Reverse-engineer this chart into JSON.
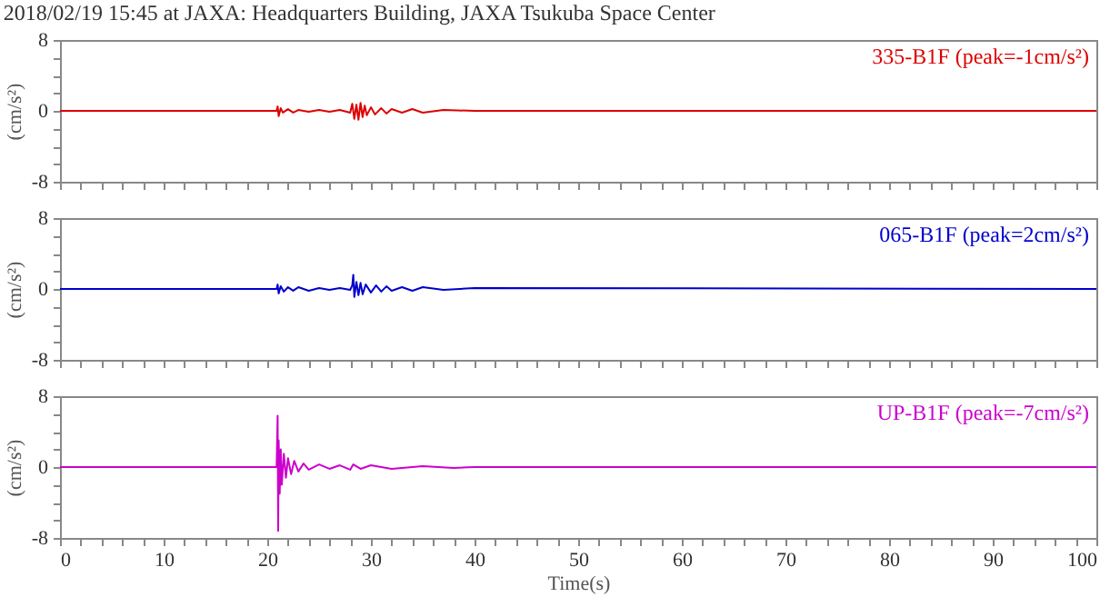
{
  "chart_data": [
    {
      "type": "line",
      "title": "2018/02/19 15:45 at JAXA: Headquarters Building, JAXA Tsukuba Space Center",
      "ylabel": "(cm/s²)",
      "annotations": [
        "335-B1F (peak=-1cm/s²)"
      ],
      "tick_labels": "y",
      "grid": false,
      "xlim": [
        0,
        100
      ],
      "ylim": [
        -8,
        8
      ],
      "xticks": [
        0,
        {
          "value": 2,
          "label": null
        },
        {
          "value": 4,
          "label": null
        },
        {
          "value": 6,
          "label": null
        },
        {
          "value": 8,
          "label": null
        },
        10,
        {
          "value": 12,
          "label": null
        },
        {
          "value": 14,
          "label": null
        },
        {
          "value": 16,
          "label": null
        },
        {
          "value": 18,
          "label": null
        },
        20,
        {
          "value": 22,
          "label": null
        },
        {
          "value": 24,
          "label": null
        },
        {
          "value": 26,
          "label": null
        },
        {
          "value": 28,
          "label": null
        },
        30,
        {
          "value": 32,
          "label": null
        },
        {
          "value": 34,
          "label": null
        },
        {
          "value": 36,
          "label": null
        },
        {
          "value": 38,
          "label": null
        },
        40,
        {
          "value": 42,
          "label": null
        },
        {
          "value": 44,
          "label": null
        },
        {
          "value": 46,
          "label": null
        },
        {
          "value": 48,
          "label": null
        },
        50,
        {
          "value": 52,
          "label": null
        },
        {
          "value": 54,
          "label": null
        },
        {
          "value": 56,
          "label": null
        },
        {
          "value": 58,
          "label": null
        },
        60,
        {
          "value": 62,
          "label": null
        },
        {
          "value": 64,
          "label": null
        },
        {
          "value": 66,
          "label": null
        },
        {
          "value": 68,
          "label": null
        },
        70,
        {
          "value": 72,
          "label": null
        },
        {
          "value": 74,
          "label": null
        },
        {
          "value": 76,
          "label": null
        },
        {
          "value": 78,
          "label": null
        },
        80,
        {
          "value": 82,
          "label": null
        },
        {
          "value": 84,
          "label": null
        },
        {
          "value": 86,
          "label": null
        },
        {
          "value": 88,
          "label": null
        },
        90,
        {
          "value": 92,
          "label": null
        },
        {
          "value": 94,
          "label": null
        },
        {
          "value": 96,
          "label": null
        },
        {
          "value": 98,
          "label": null
        },
        100
      ],
      "yticks": [
        -8,
        {
          "value": -6,
          "label": null
        },
        {
          "value": -4,
          "label": null
        },
        {
          "value": -2,
          "label": null
        },
        0,
        {
          "value": 2,
          "label": null
        },
        {
          "value": 4,
          "label": null
        },
        {
          "value": 6,
          "label": null
        },
        8
      ],
      "series": [
        {
          "color": "#dd0000",
          "x": [
            0,
            20.9,
            21,
            21.1,
            21.3,
            21.5,
            22,
            22.5,
            23,
            24,
            25,
            26,
            27,
            28,
            28.2,
            28.4,
            28.6,
            28.8,
            29,
            29.2,
            29.4,
            29.6,
            30,
            30.4,
            31,
            31.5,
            32,
            33,
            34,
            35,
            37,
            40,
            100
          ],
          "values": [
            0,
            0,
            0.5,
            -0.6,
            0.3,
            -0.2,
            0.2,
            -0.2,
            0.1,
            -0.1,
            0.1,
            -0.1,
            0.1,
            -0.2,
            0.8,
            -0.9,
            0.7,
            -1.0,
            0.9,
            -0.7,
            0.6,
            -0.5,
            0.4,
            -0.4,
            0.3,
            -0.3,
            0.2,
            -0.2,
            0.2,
            -0.2,
            0.1,
            0,
            0
          ]
        }
      ]
    },
    {
      "type": "line",
      "ylabel": "(cm/s²)",
      "annotations": [
        "065-B1F (peak=2cm/s²)"
      ],
      "tick_labels": "y",
      "grid": false,
      "xlim": [
        0,
        100
      ],
      "ylim": [
        -8,
        8
      ],
      "xticks": [
        0,
        {
          "value": 2,
          "label": null
        },
        {
          "value": 4,
          "label": null
        },
        {
          "value": 6,
          "label": null
        },
        {
          "value": 8,
          "label": null
        },
        10,
        {
          "value": 12,
          "label": null
        },
        {
          "value": 14,
          "label": null
        },
        {
          "value": 16,
          "label": null
        },
        {
          "value": 18,
          "label": null
        },
        20,
        {
          "value": 22,
          "label": null
        },
        {
          "value": 24,
          "label": null
        },
        {
          "value": 26,
          "label": null
        },
        {
          "value": 28,
          "label": null
        },
        30,
        {
          "value": 32,
          "label": null
        },
        {
          "value": 34,
          "label": null
        },
        {
          "value": 36,
          "label": null
        },
        {
          "value": 38,
          "label": null
        },
        40,
        {
          "value": 42,
          "label": null
        },
        {
          "value": 44,
          "label": null
        },
        {
          "value": 46,
          "label": null
        },
        {
          "value": 48,
          "label": null
        },
        50,
        {
          "value": 52,
          "label": null
        },
        {
          "value": 54,
          "label": null
        },
        {
          "value": 56,
          "label": null
        },
        {
          "value": 58,
          "label": null
        },
        60,
        {
          "value": 62,
          "label": null
        },
        {
          "value": 64,
          "label": null
        },
        {
          "value": 66,
          "label": null
        },
        {
          "value": 68,
          "label": null
        },
        70,
        {
          "value": 72,
          "label": null
        },
        {
          "value": 74,
          "label": null
        },
        {
          "value": 76,
          "label": null
        },
        {
          "value": 78,
          "label": null
        },
        80,
        {
          "value": 82,
          "label": null
        },
        {
          "value": 84,
          "label": null
        },
        {
          "value": 86,
          "label": null
        },
        {
          "value": 88,
          "label": null
        },
        90,
        {
          "value": 92,
          "label": null
        },
        {
          "value": 94,
          "label": null
        },
        {
          "value": 96,
          "label": null
        },
        {
          "value": 98,
          "label": null
        },
        100
      ],
      "yticks": [
        -8,
        {
          "value": -6,
          "label": null
        },
        {
          "value": -4,
          "label": null
        },
        {
          "value": -2,
          "label": null
        },
        0,
        {
          "value": 2,
          "label": null
        },
        {
          "value": 4,
          "label": null
        },
        {
          "value": 6,
          "label": null
        },
        8
      ],
      "series": [
        {
          "color": "#0000cc",
          "x": [
            0,
            20.9,
            21,
            21.1,
            21.3,
            21.6,
            22,
            22.5,
            23,
            24,
            25,
            26,
            27,
            28,
            28.2,
            28.3,
            28.4,
            28.6,
            28.8,
            29,
            29.2,
            29.5,
            30,
            30.5,
            31,
            31.5,
            32,
            33,
            34,
            35,
            37,
            40,
            100
          ],
          "values": [
            0,
            0,
            0.5,
            -0.5,
            0.3,
            -0.3,
            0.2,
            -0.2,
            0.2,
            -0.2,
            0.1,
            -0.1,
            0.1,
            -0.1,
            0.4,
            1.6,
            -0.9,
            0.8,
            -0.7,
            0.7,
            -0.6,
            0.5,
            -0.4,
            0.4,
            -0.3,
            0.3,
            -0.2,
            0.2,
            -0.2,
            0.2,
            -0.1,
            0.1,
            0
          ]
        }
      ]
    },
    {
      "type": "line",
      "xlabel": "Time(s)",
      "ylabel": "(cm/s²)",
      "annotations": [
        "UP-B1F (peak=-7cm/s²)"
      ],
      "grid": false,
      "xlim": [
        0,
        100
      ],
      "ylim": [
        -8,
        8
      ],
      "xticks": [
        0,
        {
          "value": 2,
          "label": null
        },
        {
          "value": 4,
          "label": null
        },
        {
          "value": 6,
          "label": null
        },
        {
          "value": 8,
          "label": null
        },
        10,
        {
          "value": 12,
          "label": null
        },
        {
          "value": 14,
          "label": null
        },
        {
          "value": 16,
          "label": null
        },
        {
          "value": 18,
          "label": null
        },
        20,
        {
          "value": 22,
          "label": null
        },
        {
          "value": 24,
          "label": null
        },
        {
          "value": 26,
          "label": null
        },
        {
          "value": 28,
          "label": null
        },
        30,
        {
          "value": 32,
          "label": null
        },
        {
          "value": 34,
          "label": null
        },
        {
          "value": 36,
          "label": null
        },
        {
          "value": 38,
          "label": null
        },
        40,
        {
          "value": 42,
          "label": null
        },
        {
          "value": 44,
          "label": null
        },
        {
          "value": 46,
          "label": null
        },
        {
          "value": 48,
          "label": null
        },
        50,
        {
          "value": 52,
          "label": null
        },
        {
          "value": 54,
          "label": null
        },
        {
          "value": 56,
          "label": null
        },
        {
          "value": 58,
          "label": null
        },
        60,
        {
          "value": 62,
          "label": null
        },
        {
          "value": 64,
          "label": null
        },
        {
          "value": 66,
          "label": null
        },
        {
          "value": 68,
          "label": null
        },
        70,
        {
          "value": 72,
          "label": null
        },
        {
          "value": 74,
          "label": null
        },
        {
          "value": 76,
          "label": null
        },
        {
          "value": 78,
          "label": null
        },
        80,
        {
          "value": 82,
          "label": null
        },
        {
          "value": 84,
          "label": null
        },
        {
          "value": 86,
          "label": null
        },
        {
          "value": 88,
          "label": null
        },
        90,
        {
          "value": 92,
          "label": null
        },
        {
          "value": 94,
          "label": null
        },
        {
          "value": 96,
          "label": null
        },
        {
          "value": 98,
          "label": null
        },
        100
      ],
      "yticks": [
        -8,
        {
          "value": -6,
          "label": null
        },
        {
          "value": -4,
          "label": null
        },
        {
          "value": -2,
          "label": null
        },
        0,
        {
          "value": 2,
          "label": null
        },
        {
          "value": 4,
          "label": null
        },
        {
          "value": 6,
          "label": null
        },
        8
      ],
      "series": [
        {
          "color": "#cc00cc",
          "x": [
            0,
            20.9,
            21,
            21.05,
            21.1,
            21.2,
            21.3,
            21.4,
            21.6,
            21.8,
            22,
            22.3,
            22.6,
            23,
            23.5,
            24,
            25,
            26,
            27,
            28,
            28.3,
            29,
            30,
            32,
            35,
            38,
            40,
            50,
            60,
            100
          ],
          "values": [
            0,
            0,
            5.8,
            -7.2,
            3,
            -3,
            2,
            -2,
            1.5,
            -1.2,
            1,
            -0.8,
            0.7,
            -0.5,
            0.4,
            -0.3,
            0.3,
            -0.2,
            0.2,
            -0.3,
            0.3,
            -0.2,
            0.2,
            -0.2,
            0.1,
            -0.1,
            0,
            0,
            0,
            0
          ]
        }
      ]
    }
  ]
}
